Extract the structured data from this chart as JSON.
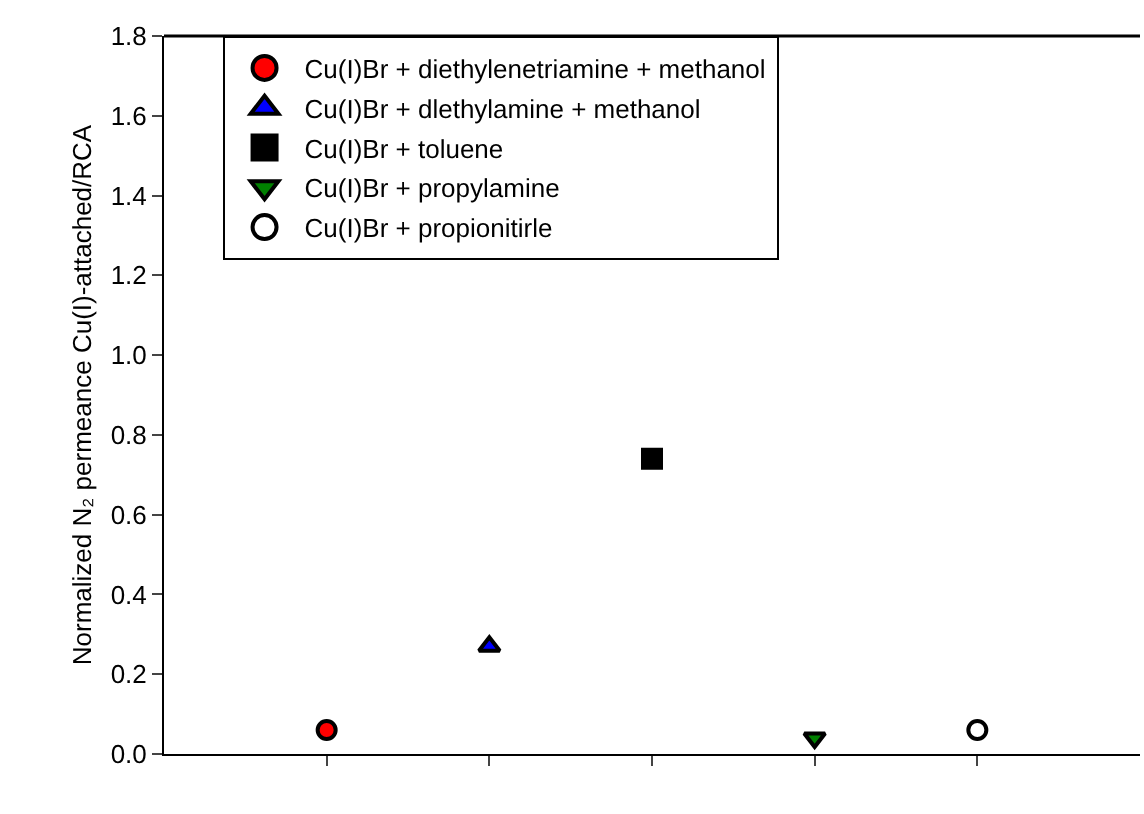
{
  "chart_data": {
    "type": "scatter",
    "ylabel": "Normalized N₂ permeance Cu(I)-attached/RCA",
    "categories": [
      null,
      null,
      null,
      null,
      null
    ],
    "series": [
      {
        "name": "Cu(I)Br + diethylenetriamine + methanol",
        "color": "#ff0000",
        "marker": "circle",
        "values": [
          0.06,
          null,
          null,
          null,
          null
        ]
      },
      {
        "name": "Cu(I)Br + dlethylamine + methanol",
        "color": "#0000ff",
        "marker": "triangle",
        "values": [
          null,
          0.27,
          null,
          null,
          null
        ]
      },
      {
        "name": "Cu(I)Br + toluene",
        "color": "#000000",
        "marker": "square",
        "values": [
          null,
          null,
          0.74,
          null,
          null
        ]
      },
      {
        "name": "Cu(I)Br + propylamine",
        "color": "#008000",
        "marker": "triangle-down",
        "values": [
          null,
          null,
          null,
          0.04,
          null
        ]
      },
      {
        "name": "Cu(I)Br + propionitirle",
        "color": "#ffffff",
        "marker": "circle",
        "values": [
          null,
          null,
          null,
          null,
          0.06
        ]
      }
    ],
    "ylim": [
      0,
      1.8
    ],
    "yticks": [
      {
        "value": 0,
        "label": "0.0"
      },
      0.2,
      0.4,
      0.6,
      0.8,
      {
        "value": 1,
        "label": "1.0"
      },
      1.2,
      1.4,
      1.6,
      1.8
    ],
    "legend": "top"
  }
}
